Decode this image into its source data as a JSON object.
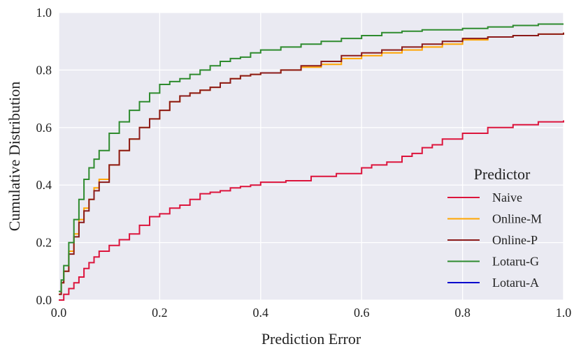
{
  "chart_data": {
    "type": "line",
    "xlabel": "Prediction Error",
    "ylabel": "Cumulative Distribution",
    "xlim": [
      0,
      1
    ],
    "ylim": [
      0,
      1
    ],
    "x_ticks": [
      "0.0",
      "0.2",
      "0.4",
      "0.6",
      "0.8",
      "1.0"
    ],
    "y_ticks": [
      "0.0",
      "0.2",
      "0.4",
      "0.6",
      "0.8",
      "1.0"
    ],
    "grid": true,
    "background": "#eaeaf2",
    "legend": {
      "title": "Predictor",
      "placement": "lower-right"
    },
    "series": [
      {
        "name": "Naive",
        "color": "#dc143c",
        "x": [
          0.0,
          0.01,
          0.02,
          0.03,
          0.04,
          0.05,
          0.06,
          0.07,
          0.08,
          0.1,
          0.12,
          0.14,
          0.16,
          0.18,
          0.2,
          0.22,
          0.24,
          0.26,
          0.28,
          0.3,
          0.32,
          0.34,
          0.36,
          0.38,
          0.4,
          0.45,
          0.5,
          0.55,
          0.6,
          0.62,
          0.65,
          0.68,
          0.7,
          0.72,
          0.74,
          0.76,
          0.8,
          0.85,
          0.9,
          0.95,
          1.0
        ],
        "y": [
          0.0,
          0.02,
          0.04,
          0.06,
          0.08,
          0.11,
          0.13,
          0.15,
          0.17,
          0.19,
          0.21,
          0.23,
          0.26,
          0.29,
          0.3,
          0.32,
          0.33,
          0.35,
          0.37,
          0.375,
          0.38,
          0.39,
          0.395,
          0.4,
          0.41,
          0.415,
          0.43,
          0.44,
          0.46,
          0.47,
          0.48,
          0.5,
          0.51,
          0.53,
          0.54,
          0.56,
          0.58,
          0.6,
          0.61,
          0.62,
          0.625
        ]
      },
      {
        "name": "Online-M",
        "color": "#ffa500",
        "x": [
          0.0,
          0.005,
          0.01,
          0.02,
          0.03,
          0.04,
          0.05,
          0.06,
          0.07,
          0.08,
          0.1,
          0.12,
          0.14,
          0.16,
          0.18,
          0.2,
          0.22,
          0.24,
          0.26,
          0.28,
          0.3,
          0.32,
          0.34,
          0.36,
          0.38,
          0.4,
          0.44,
          0.48,
          0.52,
          0.56,
          0.6,
          0.64,
          0.68,
          0.72,
          0.76,
          0.8,
          0.85,
          0.9,
          0.95,
          1.0
        ],
        "y": [
          0.02,
          0.06,
          0.1,
          0.17,
          0.23,
          0.28,
          0.32,
          0.35,
          0.39,
          0.42,
          0.47,
          0.52,
          0.56,
          0.6,
          0.63,
          0.66,
          0.69,
          0.71,
          0.72,
          0.73,
          0.74,
          0.755,
          0.77,
          0.78,
          0.785,
          0.79,
          0.8,
          0.81,
          0.82,
          0.84,
          0.85,
          0.86,
          0.87,
          0.88,
          0.89,
          0.905,
          0.915,
          0.92,
          0.925,
          0.93
        ]
      },
      {
        "name": "Online-P",
        "color": "#8b1a1a",
        "x": [
          0.0,
          0.005,
          0.01,
          0.02,
          0.03,
          0.04,
          0.05,
          0.06,
          0.07,
          0.08,
          0.1,
          0.12,
          0.14,
          0.16,
          0.18,
          0.2,
          0.22,
          0.24,
          0.26,
          0.28,
          0.3,
          0.32,
          0.34,
          0.36,
          0.38,
          0.4,
          0.44,
          0.48,
          0.52,
          0.56,
          0.6,
          0.64,
          0.68,
          0.72,
          0.76,
          0.8,
          0.85,
          0.9,
          0.95,
          1.0
        ],
        "y": [
          0.02,
          0.06,
          0.1,
          0.16,
          0.22,
          0.27,
          0.31,
          0.35,
          0.38,
          0.41,
          0.47,
          0.52,
          0.56,
          0.6,
          0.63,
          0.66,
          0.69,
          0.71,
          0.72,
          0.73,
          0.74,
          0.755,
          0.77,
          0.78,
          0.785,
          0.79,
          0.8,
          0.815,
          0.83,
          0.85,
          0.86,
          0.87,
          0.88,
          0.89,
          0.9,
          0.91,
          0.915,
          0.92,
          0.925,
          0.93
        ]
      },
      {
        "name": "Lotaru-G",
        "color": "#2e8b2e",
        "x": [
          0.0,
          0.005,
          0.01,
          0.02,
          0.03,
          0.04,
          0.05,
          0.06,
          0.07,
          0.08,
          0.1,
          0.12,
          0.14,
          0.16,
          0.18,
          0.2,
          0.22,
          0.24,
          0.26,
          0.28,
          0.3,
          0.32,
          0.34,
          0.36,
          0.38,
          0.4,
          0.44,
          0.48,
          0.52,
          0.56,
          0.6,
          0.64,
          0.68,
          0.72,
          0.76,
          0.8,
          0.85,
          0.9,
          0.95,
          1.0
        ],
        "y": [
          0.03,
          0.07,
          0.12,
          0.2,
          0.28,
          0.35,
          0.42,
          0.46,
          0.49,
          0.52,
          0.58,
          0.62,
          0.66,
          0.69,
          0.72,
          0.75,
          0.76,
          0.77,
          0.785,
          0.8,
          0.815,
          0.83,
          0.84,
          0.845,
          0.86,
          0.87,
          0.88,
          0.89,
          0.9,
          0.91,
          0.92,
          0.93,
          0.935,
          0.94,
          0.94,
          0.945,
          0.95,
          0.955,
          0.96,
          0.96
        ]
      },
      {
        "name": "Lotaru-A",
        "color": "#0000cd",
        "x": [],
        "y": []
      }
    ]
  }
}
